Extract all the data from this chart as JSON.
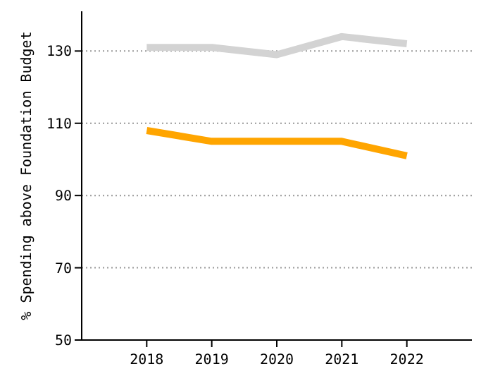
{
  "chart_data": {
    "type": "line",
    "ylabel": "% Spending above Foundation Budget",
    "x": [
      2018,
      2019,
      2020,
      2021,
      2022
    ],
    "series": [
      {
        "color": "#d3d3d3",
        "values": [
          131,
          131,
          129,
          134,
          132
        ]
      },
      {
        "color": "#ffa500",
        "values": [
          108,
          105,
          105,
          105,
          101
        ]
      }
    ],
    "xlim": [
      2017,
      2023
    ],
    "xticks": [
      2018,
      2019,
      2020,
      2021,
      2022
    ],
    "ylim": [
      50,
      141
    ],
    "yticks": [
      50,
      70,
      90,
      110,
      130
    ],
    "grid": "y",
    "marker": "none",
    "line_style": "solid"
  }
}
